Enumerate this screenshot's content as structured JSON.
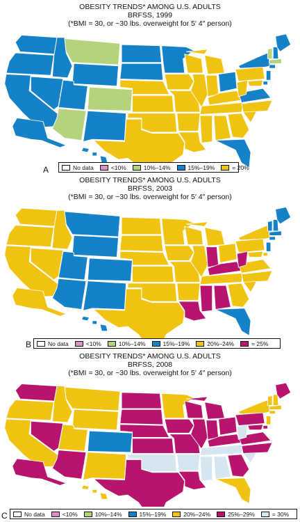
{
  "colors": {
    "no_data": "#ffffff",
    "lt10": "#d991c3",
    "p10_14": "#b5d37c",
    "p15_19": "#1582c8",
    "p20_24": "#f0c313",
    "p25_29": "#b8146e",
    "ge30": "#d6e6f0"
  },
  "panels": [
    {
      "letter": "A",
      "title": "OBESITY TRENDS* AMONG U.S. ADULTS",
      "subtitle": "BRFSS, 1999",
      "note": "(*BMI = 30, or ~30 lbs. overweight for 5′ 4″ person)",
      "legend": [
        {
          "label": "No data",
          "color": "#ffffff"
        },
        {
          "label": "<10%",
          "color": "#d991c3"
        },
        {
          "label": "10%–14%",
          "color": "#b5d37c"
        },
        {
          "label": "15%–19%",
          "color": "#1582c8"
        },
        {
          "label": "= 20%",
          "color": "#f0c313"
        }
      ]
    },
    {
      "letter": "B",
      "title": "OBESITY TRENDS* AMONG U.S. ADULTS",
      "subtitle": "BRFSS, 2003",
      "note": "(*BMI = 30, or ~30 lbs. overweight for 5′ 4″ person)",
      "legend": [
        {
          "label": "No data",
          "color": "#ffffff"
        },
        {
          "label": "<10%",
          "color": "#d991c3"
        },
        {
          "label": "10%–14%",
          "color": "#b5d37c"
        },
        {
          "label": "15%–19%",
          "color": "#1582c8"
        },
        {
          "label": "20%–24%",
          "color": "#f0c313"
        },
        {
          "label": "= 25%",
          "color": "#b8146e"
        }
      ]
    },
    {
      "letter": "C",
      "title": "OBESITY TRENDS* AMONG U.S. ADULTS",
      "subtitle": "BRFSS, 2008",
      "note": "(*BMI = 30, or ~30 lbs. overweight for 5′ 4″ person)",
      "legend": [
        {
          "label": "No data",
          "color": "#ffffff"
        },
        {
          "label": "<10%",
          "color": "#d991c3"
        },
        {
          "label": "10%–14%",
          "color": "#b5d37c"
        },
        {
          "label": "15%–19%",
          "color": "#1582c8"
        },
        {
          "label": "20%–24%",
          "color": "#f0c313"
        },
        {
          "label": "25%–29%",
          "color": "#b8146e"
        },
        {
          "label": "= 30%",
          "color": "#d6e6f0"
        }
      ]
    }
  ]
}
